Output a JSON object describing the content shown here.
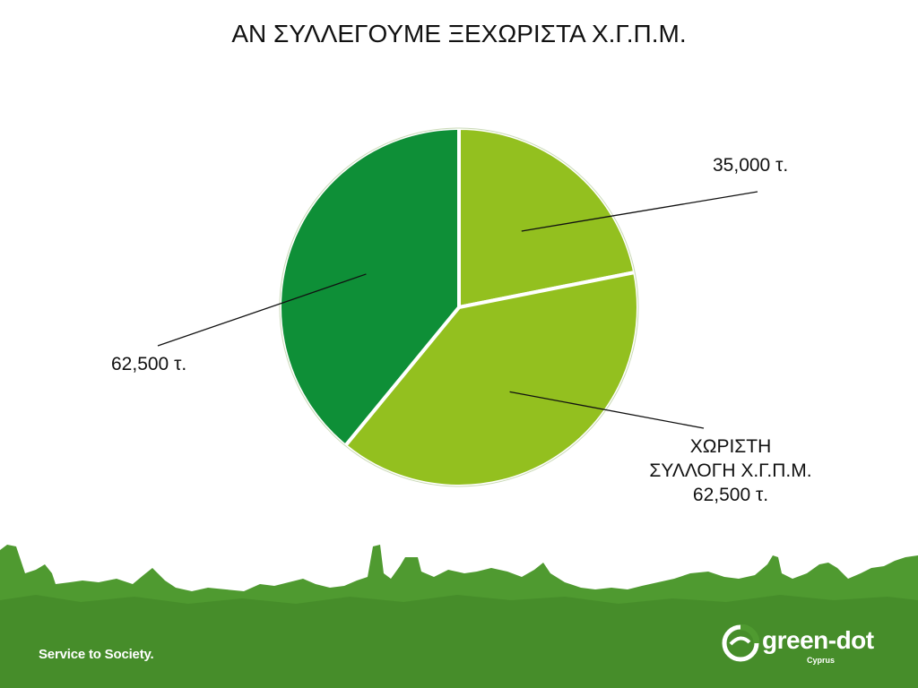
{
  "slide": {
    "title": "ΑΝ ΣΥΛΛΕΓΟΥΜΕ ΞΕΧΩΡΙΣΤΑ Χ.Γ.Π.Μ.",
    "tagline": "Service to Society.",
    "logo_text": "green-dot",
    "logo_subtext": "Cyprus"
  },
  "chart_data": {
    "type": "pie",
    "title": "ΑΝ ΣΥΛΛΕΓΟΥΜΕ ΞΕΧΩΡΙΣΤΑ Χ.Γ.Π.Μ.",
    "unit": "τ.",
    "slices": [
      {
        "label_lines": [
          "35,000 τ."
        ],
        "value": 35000,
        "color": "#93c01f"
      },
      {
        "label_lines": [
          "ΧΩΡΙΣΤΗ",
          "ΣΥΛΛΟΓΗ Χ.Γ.Π.Μ.",
          "62,500 τ."
        ],
        "value": 62500,
        "color": "#93c01f"
      },
      {
        "label_lines": [
          "62,500 τ."
        ],
        "value": 62500,
        "color": "#0e8f37"
      }
    ]
  },
  "colors": {
    "footer_green": "#4f9a30",
    "footer_green_dark": "#3f8427",
    "slice_border": "#ffffff"
  }
}
